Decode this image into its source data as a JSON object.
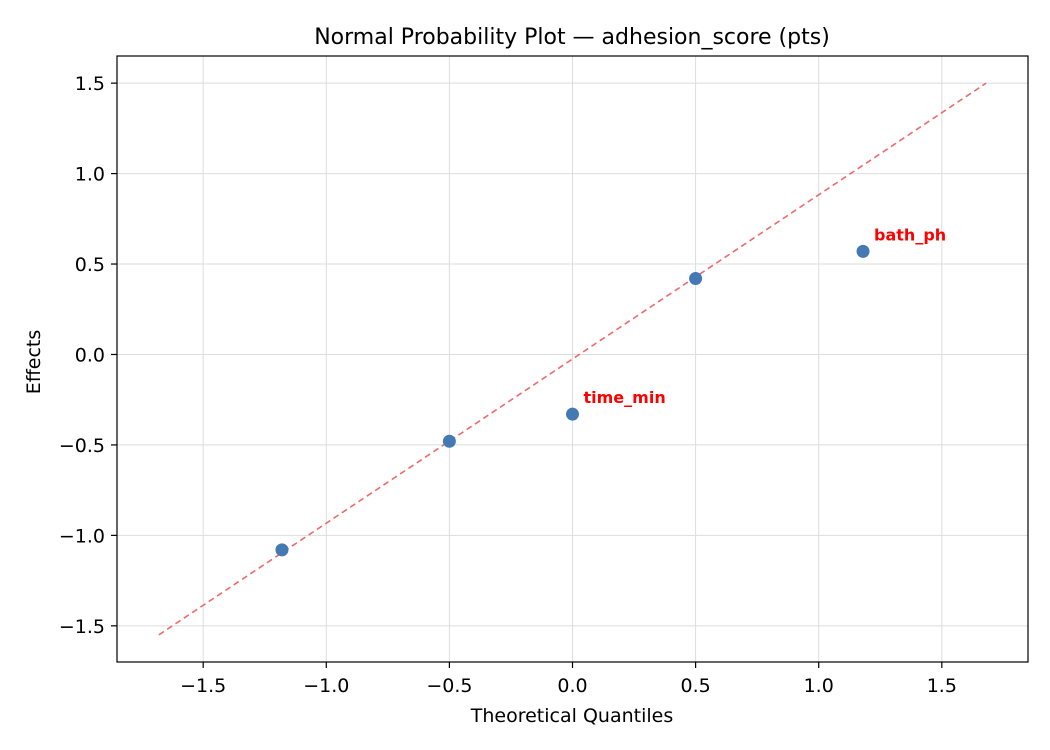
{
  "chart_data": {
    "type": "scatter",
    "title": "Normal Probability Plot — adhesion_score (pts)",
    "xlabel": "Theoretical Quantiles",
    "ylabel": "Effects",
    "xlim": [
      -1.85,
      1.85
    ],
    "ylim": [
      -1.7,
      1.65
    ],
    "xticks": [
      -1.5,
      -1.0,
      -0.5,
      0.0,
      0.5,
      1.0,
      1.5
    ],
    "yticks": [
      -1.5,
      -1.0,
      -0.5,
      0.0,
      0.5,
      1.0,
      1.5
    ],
    "xtick_labels": [
      "−1.5",
      "−1.0",
      "−0.5",
      "0.0",
      "0.5",
      "1.0",
      "1.5"
    ],
    "ytick_labels": [
      "−1.5",
      "−1.0",
      "−0.5",
      "0.0",
      "0.5",
      "1.0",
      "1.5"
    ],
    "grid": true,
    "points": [
      {
        "x": -1.18,
        "y": -1.08,
        "label": ""
      },
      {
        "x": -0.5,
        "y": -0.48,
        "label": ""
      },
      {
        "x": 0.0,
        "y": -0.33,
        "label": "time_min"
      },
      {
        "x": 0.5,
        "y": 0.42,
        "label": ""
      },
      {
        "x": 1.18,
        "y": 0.57,
        "label": "bath_ph"
      }
    ],
    "reference_line": {
      "x": [
        -1.68,
        1.68
      ],
      "y": [
        -1.55,
        1.5
      ],
      "style": "dashed"
    },
    "colors": {
      "points": "#4479b4",
      "reference_line": "#ef6a6a",
      "annotation": "#ff0000",
      "grid": "#dddddd"
    }
  }
}
